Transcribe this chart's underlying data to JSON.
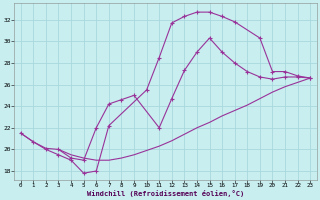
{
  "xlabel": "Windchill (Refroidissement éolien,°C)",
  "bg_color": "#c8eef0",
  "line_color": "#993399",
  "grid_color": "#a8d8dc",
  "xlim": [
    -0.5,
    23.5
  ],
  "ylim": [
    17.2,
    33.5
  ],
  "xticks": [
    0,
    1,
    2,
    3,
    4,
    5,
    6,
    7,
    8,
    9,
    10,
    11,
    12,
    13,
    14,
    15,
    16,
    17,
    18,
    19,
    20,
    21,
    22,
    23
  ],
  "yticks": [
    18,
    20,
    22,
    24,
    26,
    28,
    30,
    32
  ],
  "curve1_x": [
    0,
    1,
    2,
    3,
    4,
    5,
    6,
    7,
    10,
    11,
    12,
    13,
    14,
    15,
    16,
    17,
    19,
    20,
    21,
    22,
    23
  ],
  "curve1_y": [
    21.5,
    20.7,
    20.0,
    19.5,
    19.0,
    17.8,
    18.0,
    22.2,
    25.5,
    28.5,
    31.7,
    32.3,
    32.7,
    32.7,
    32.3,
    31.8,
    30.3,
    27.2,
    27.2,
    26.8,
    26.6
  ],
  "curve2_x": [
    3,
    4,
    5,
    6,
    7,
    8,
    9,
    11,
    12,
    13,
    14,
    15,
    16,
    17,
    18,
    19,
    20,
    21,
    22,
    23
  ],
  "curve2_y": [
    20.0,
    19.2,
    19.0,
    22.0,
    24.2,
    24.6,
    25.0,
    22.0,
    24.7,
    27.3,
    29.0,
    30.3,
    29.0,
    28.0,
    27.2,
    26.7,
    26.5,
    26.7,
    26.7,
    26.6
  ],
  "curve3_x": [
    0,
    1,
    2,
    3,
    4,
    5,
    6,
    7,
    8,
    9,
    10,
    11,
    12,
    13,
    14,
    15,
    16,
    17,
    18,
    19,
    20,
    21,
    22,
    23
  ],
  "curve3_y": [
    21.5,
    20.7,
    20.1,
    20.0,
    19.5,
    19.2,
    19.0,
    19.0,
    19.2,
    19.5,
    19.9,
    20.3,
    20.8,
    21.4,
    22.0,
    22.5,
    23.1,
    23.6,
    24.1,
    24.7,
    25.3,
    25.8,
    26.2,
    26.6
  ]
}
